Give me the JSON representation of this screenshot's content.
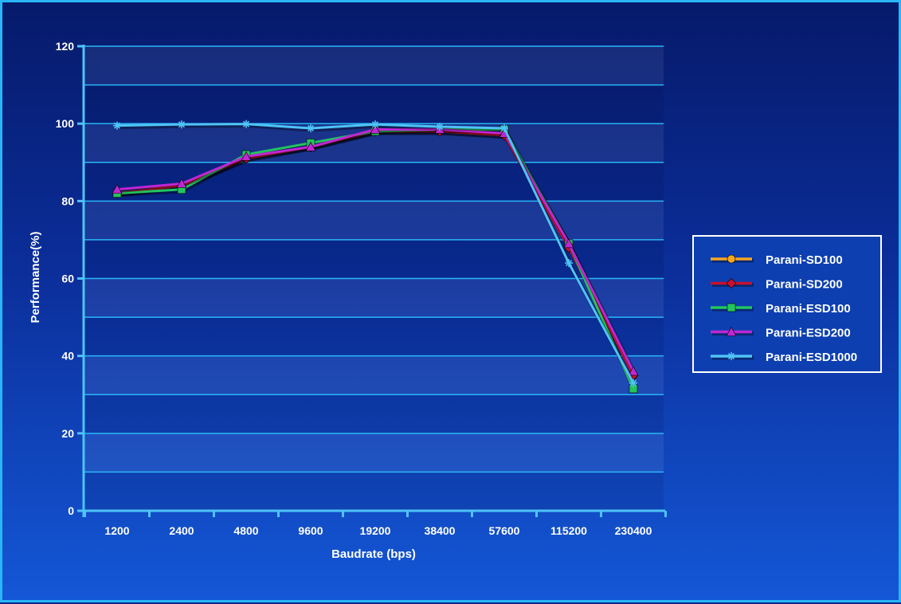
{
  "chart_data": {
    "type": "line",
    "title": "",
    "xlabel": "Baudrate (bps)",
    "ylabel": "Performance(%)",
    "ylim": [
      0,
      120
    ],
    "yticks": [
      0,
      20,
      40,
      60,
      80,
      100,
      120
    ],
    "categories": [
      "1200",
      "2400",
      "4800",
      "9600",
      "19200",
      "38400",
      "57600",
      "115200",
      "230400"
    ],
    "grid": true,
    "legend_position": "right",
    "series": [
      {
        "name": "Parani-SD100",
        "color": "#f5a623",
        "marker": "circle",
        "values": [
          82,
          84,
          91,
          94,
          98,
          98,
          97,
          69,
          35
        ]
      },
      {
        "name": "Parani-SD200",
        "color": "#c8102e",
        "marker": "diamond",
        "values": [
          82,
          84,
          91,
          94,
          98,
          98,
          97,
          68,
          35
        ]
      },
      {
        "name": "Parani-ESD100",
        "color": "#22c55e",
        "marker": "square",
        "values": [
          82,
          83,
          92,
          95,
          98,
          98.5,
          98.5,
          69,
          31.5
        ]
      },
      {
        "name": "Parani-ESD200",
        "color": "#c026d3",
        "marker": "triangle",
        "values": [
          83,
          84.5,
          91.5,
          94,
          98.5,
          98.5,
          97.5,
          69,
          36
        ]
      },
      {
        "name": "Parani-ESD1000",
        "color": "#4fc3f7",
        "marker": "star",
        "values": [
          99.5,
          99.8,
          99.9,
          98.8,
          99.8,
          99.2,
          98.8,
          64,
          33
        ]
      }
    ]
  }
}
